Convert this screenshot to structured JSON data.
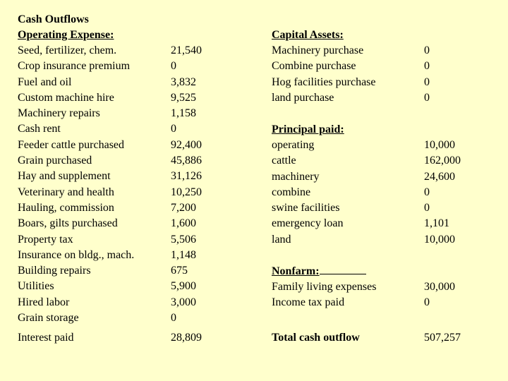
{
  "heading": "Cash Outflows",
  "operating": {
    "title": "Operating Expense:",
    "items": [
      {
        "label": "Seed, fertilizer, chem.",
        "value": "21,540"
      },
      {
        "label": "Crop insurance premium",
        "value": "0"
      },
      {
        "label": "Fuel and oil",
        "value": "3,832"
      },
      {
        "label": "Custom machine hire",
        "value": "9,525"
      },
      {
        "label": "Machinery repairs",
        "value": "1,158"
      },
      {
        "label": "Cash rent",
        "value": "0"
      },
      {
        "label": "Feeder cattle purchased",
        "value": "92,400"
      },
      {
        "label": "Grain purchased",
        "value": "45,886"
      },
      {
        "label": "Hay and supplement",
        "value": "31,126"
      },
      {
        "label": "Veterinary and health",
        "value": "10,250"
      },
      {
        "label": "Hauling, commission",
        "value": "7,200"
      },
      {
        "label": "Boars, gilts purchased",
        "value": "1,600"
      },
      {
        "label": "Property tax",
        "value": "5,506"
      },
      {
        "label": "Insurance on bldg., mach.",
        "value": "1,148"
      },
      {
        "label": "Building repairs",
        "value": "675"
      },
      {
        "label": "Utilities",
        "value": "5,900"
      },
      {
        "label": "Hired labor",
        "value": "3,000"
      },
      {
        "label": "Grain storage",
        "value": "0"
      }
    ]
  },
  "interest": {
    "label": "Interest paid",
    "value": "28,809"
  },
  "capital": {
    "title": "Capital Assets:",
    "items": [
      {
        "label": "Machinery purchase",
        "value": "0"
      },
      {
        "label": "Combine purchase",
        "value": "0"
      },
      {
        "label": "Hog facilities purchase",
        "value": "0"
      },
      {
        "label": "land purchase",
        "value": "0"
      }
    ]
  },
  "principal": {
    "title": "Principal paid:",
    "items": [
      {
        "label": "operating",
        "value": "10,000"
      },
      {
        "label": "cattle",
        "value": "162,000"
      },
      {
        "label": "machinery",
        "value": "24,600"
      },
      {
        "label": "combine",
        "value": "0"
      },
      {
        "label": "swine facilities",
        "value": "0"
      },
      {
        "label": "emergency loan",
        "value": "1,101"
      },
      {
        "label": "land",
        "value": "10,000"
      }
    ]
  },
  "nonfarm": {
    "title": "Nonfarm:",
    "items": [
      {
        "label": "Family living expenses",
        "value": "30,000"
      },
      {
        "label": "Income tax paid",
        "value": "0"
      }
    ]
  },
  "total": {
    "label": "Total cash outflow",
    "value": "507,257"
  }
}
